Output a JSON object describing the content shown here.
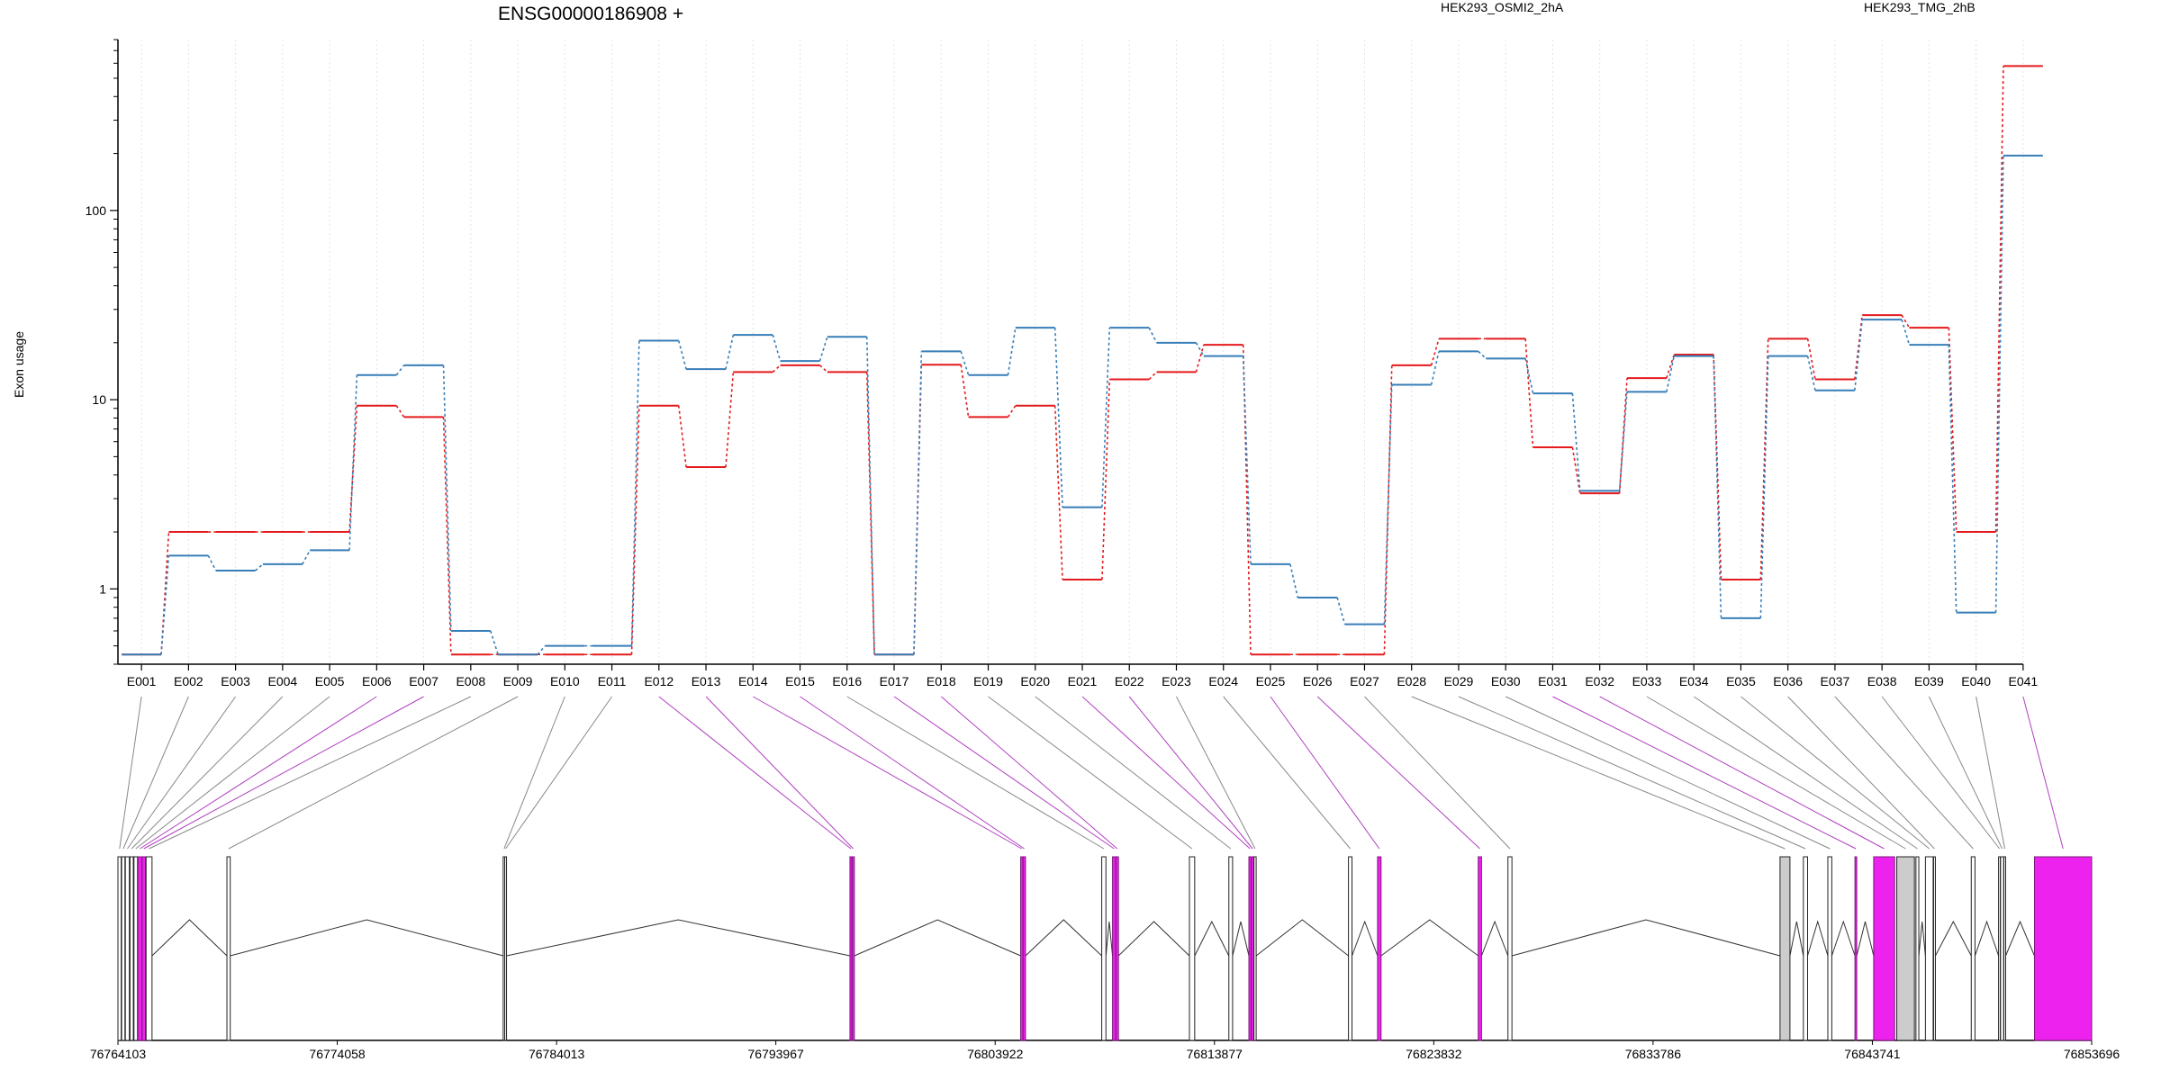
{
  "chart_data": {
    "type": "line",
    "title": "ENSG00000186908 +",
    "ylabel": "Exon usage",
    "xlabel": "",
    "yscale": "log",
    "ylim": [
      0.4,
      800
    ],
    "yticks": [
      1,
      10,
      100
    ],
    "ytick_labels": [
      "1",
      "10",
      "100"
    ],
    "grid": "vertical dotted at each exon",
    "legend_placement": "top",
    "categories": [
      "E001",
      "E002",
      "E003",
      "E004",
      "E005",
      "E006",
      "E007",
      "E008",
      "E009",
      "E010",
      "E011",
      "E012",
      "E013",
      "E014",
      "E015",
      "E016",
      "E017",
      "E018",
      "E019",
      "E020",
      "E021",
      "E022",
      "E023",
      "E024",
      "E025",
      "E026",
      "E027",
      "E028",
      "E029",
      "E030",
      "E031",
      "E032",
      "E033",
      "E034",
      "E035",
      "E036",
      "E037",
      "E038",
      "E039",
      "E040",
      "E041"
    ],
    "series": [
      {
        "name": "HEK293_OSMI2_2hA",
        "color": "#e41a1c",
        "values": [
          0.45,
          2.0,
          2.0,
          2.0,
          2.0,
          9.3,
          8.1,
          0.45,
          0.45,
          0.45,
          0.45,
          9.3,
          4.4,
          14.0,
          15.2,
          14.0,
          0.45,
          15.3,
          8.1,
          9.3,
          1.12,
          12.8,
          14.0,
          19.5,
          0.45,
          0.45,
          0.45,
          15.2,
          21.0,
          21.0,
          5.6,
          3.2,
          13.0,
          17.3,
          1.12,
          21.0,
          12.8,
          28.0,
          24.0,
          2.0,
          580.0
        ]
      },
      {
        "name": "HEK293_TMG_2hB",
        "color": "#377eb8",
        "values": [
          0.45,
          1.5,
          1.25,
          1.35,
          1.6,
          13.5,
          15.2,
          0.6,
          0.45,
          0.5,
          0.5,
          20.5,
          14.5,
          22.0,
          16.0,
          21.5,
          0.45,
          18.0,
          13.5,
          24.0,
          2.7,
          24.0,
          20.0,
          17.0,
          1.35,
          0.9,
          0.65,
          12.0,
          18.0,
          16.5,
          10.8,
          3.3,
          11.0,
          17.0,
          0.7,
          17.0,
          11.2,
          26.5,
          19.5,
          0.75,
          195.0
        ]
      }
    ],
    "gene_model": {
      "genomic_ticks": [
        "76764103",
        "76774058",
        "76784013",
        "76793967",
        "76803922",
        "76813877",
        "76823832",
        "76833786",
        "76843741",
        "76853696"
      ],
      "coord_start": 76764103,
      "coord_end": 76853696,
      "highlight_color": "#ee22ee",
      "exons": [
        {
          "id": "E001",
          "start": 76764103,
          "end": 76764250,
          "highlight": false
        },
        {
          "id": "E002",
          "start": 76764270,
          "end": 76764420,
          "highlight": false
        },
        {
          "id": "E003",
          "start": 76764440,
          "end": 76764620,
          "highlight": false
        },
        {
          "id": "E004",
          "start": 76764650,
          "end": 76764800,
          "highlight": false
        },
        {
          "id": "E005",
          "start": 76764830,
          "end": 76764990,
          "highlight": false
        },
        {
          "id": "E006",
          "start": 76765010,
          "end": 76765190,
          "highlight": true
        },
        {
          "id": "E007",
          "start": 76765200,
          "end": 76765350,
          "highlight": true
        },
        {
          "id": "E008",
          "start": 76765380,
          "end": 76765650,
          "highlight": false
        },
        {
          "id": "E009",
          "start": 76769050,
          "end": 76769200,
          "highlight": false
        },
        {
          "id": "E010",
          "start": 76781590,
          "end": 76781650,
          "highlight": false
        },
        {
          "id": "E011",
          "start": 76781660,
          "end": 76781720,
          "highlight": false
        },
        {
          "id": "E012",
          "start": 76797330,
          "end": 76797420,
          "highlight": true
        },
        {
          "id": "E013",
          "start": 76797430,
          "end": 76797530,
          "highlight": true
        },
        {
          "id": "E014",
          "start": 76805080,
          "end": 76805180,
          "highlight": true
        },
        {
          "id": "E015",
          "start": 76805190,
          "end": 76805300,
          "highlight": true
        },
        {
          "id": "E016",
          "start": 76808760,
          "end": 76808950,
          "highlight": false
        },
        {
          "id": "E017",
          "start": 76809250,
          "end": 76809390,
          "highlight": true
        },
        {
          "id": "E018",
          "start": 76809400,
          "end": 76809520,
          "highlight": true
        },
        {
          "id": "E019",
          "start": 76812740,
          "end": 76812980,
          "highlight": false
        },
        {
          "id": "E020",
          "start": 76814530,
          "end": 76814700,
          "highlight": false
        },
        {
          "id": "E021",
          "start": 76815440,
          "end": 76815540,
          "highlight": true
        },
        {
          "id": "E022",
          "start": 76815550,
          "end": 76815660,
          "highlight": true
        },
        {
          "id": "E023",
          "start": 76815670,
          "end": 76815770,
          "highlight": false
        },
        {
          "id": "E024",
          "start": 76819960,
          "end": 76820120,
          "highlight": false
        },
        {
          "id": "E025",
          "start": 76821280,
          "end": 76821440,
          "highlight": true
        },
        {
          "id": "E026",
          "start": 76825850,
          "end": 76826000,
          "highlight": true
        },
        {
          "id": "E027",
          "start": 76827200,
          "end": 76827380,
          "highlight": false
        },
        {
          "id": "E028",
          "start": 76839550,
          "end": 76840000,
          "highlight": false
        },
        {
          "id": "E029",
          "start": 76840610,
          "end": 76840800,
          "highlight": false
        },
        {
          "id": "E030",
          "start": 76841720,
          "end": 76841900,
          "highlight": false
        },
        {
          "id": "E031",
          "start": 76842950,
          "end": 76843020,
          "highlight": true
        },
        {
          "id": "E032",
          "start": 76843800,
          "end": 76844750,
          "highlight": true
        },
        {
          "id": "E033",
          "start": 76844850,
          "end": 76845650,
          "highlight": false
        },
        {
          "id": "E034",
          "start": 76845720,
          "end": 76845850,
          "highlight": false
        },
        {
          "id": "E035",
          "start": 76846150,
          "end": 76846500,
          "highlight": false
        },
        {
          "id": "E036",
          "start": 76846520,
          "end": 76846600,
          "highlight": false
        },
        {
          "id": "E037",
          "start": 76848230,
          "end": 76848400,
          "highlight": false
        },
        {
          "id": "E038",
          "start": 76849470,
          "end": 76849550,
          "highlight": false
        },
        {
          "id": "E039",
          "start": 76849560,
          "end": 76849700,
          "highlight": false
        },
        {
          "id": "E040",
          "start": 76849710,
          "end": 76849760,
          "highlight": false
        },
        {
          "id": "E041",
          "start": 76851100,
          "end": 76853696,
          "highlight": true
        }
      ]
    }
  }
}
